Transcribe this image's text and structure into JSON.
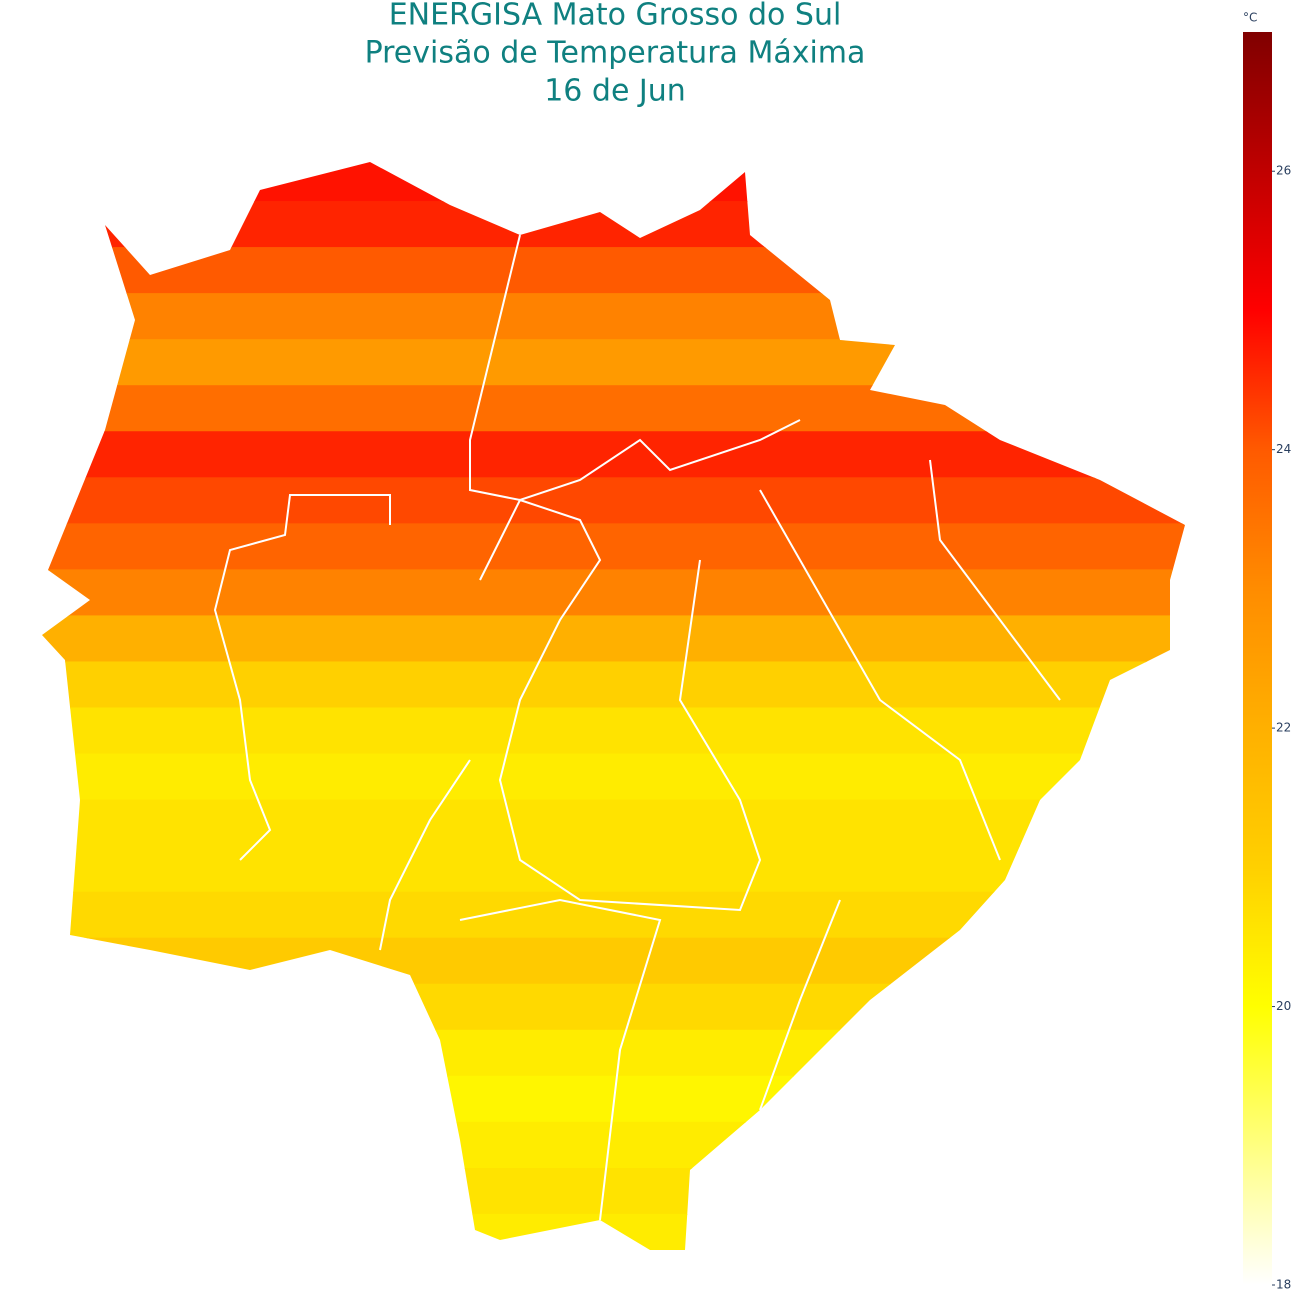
{
  "chart_data": {
    "type": "choropleth-bands",
    "title": [
      "ENERGISA Mato Grosso do Sul",
      "Previsão de Temperatura Máxima",
      "16 de Jun"
    ],
    "colorbar_title": "°C",
    "colorscale": [
      "#ffffff",
      "#ffff80",
      "#ffff00",
      "#ffd000",
      "#ffb000",
      "#ff8c00",
      "#ff5a00",
      "#ff0000",
      "#c00000",
      "#800000"
    ],
    "clim": [
      18,
      27
    ],
    "cticks": [
      18,
      20,
      22,
      24,
      26
    ],
    "values": [
      24.8,
      24.6,
      24,
      23.2,
      22.6,
      23.6,
      24.6,
      24.2,
      23.8,
      23.2,
      22,
      21,
      20.6,
      20.4,
      20.6,
      20.6,
      20.8,
      21.2,
      20.8,
      20.4,
      20.2,
      20.4,
      20.6,
      20.4
    ]
  }
}
